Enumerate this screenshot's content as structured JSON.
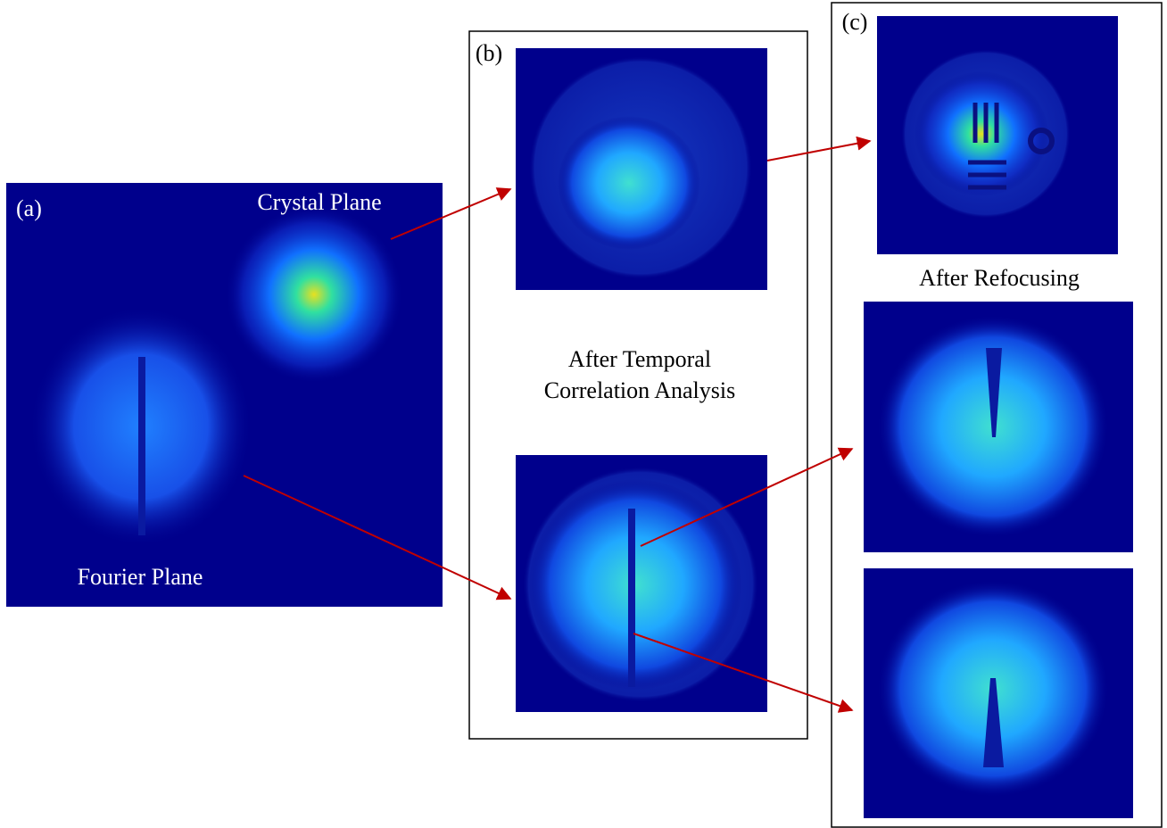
{
  "panel_a": {
    "label": "(a)",
    "crystal_label": "Crystal Plane",
    "fourier_label": "Fourier Plane"
  },
  "panel_b": {
    "label": "(b)",
    "caption_line1": "After Temporal",
    "caption_line2": "Correlation Analysis"
  },
  "panel_c": {
    "label": "(c)",
    "caption": "After Refocusing"
  }
}
